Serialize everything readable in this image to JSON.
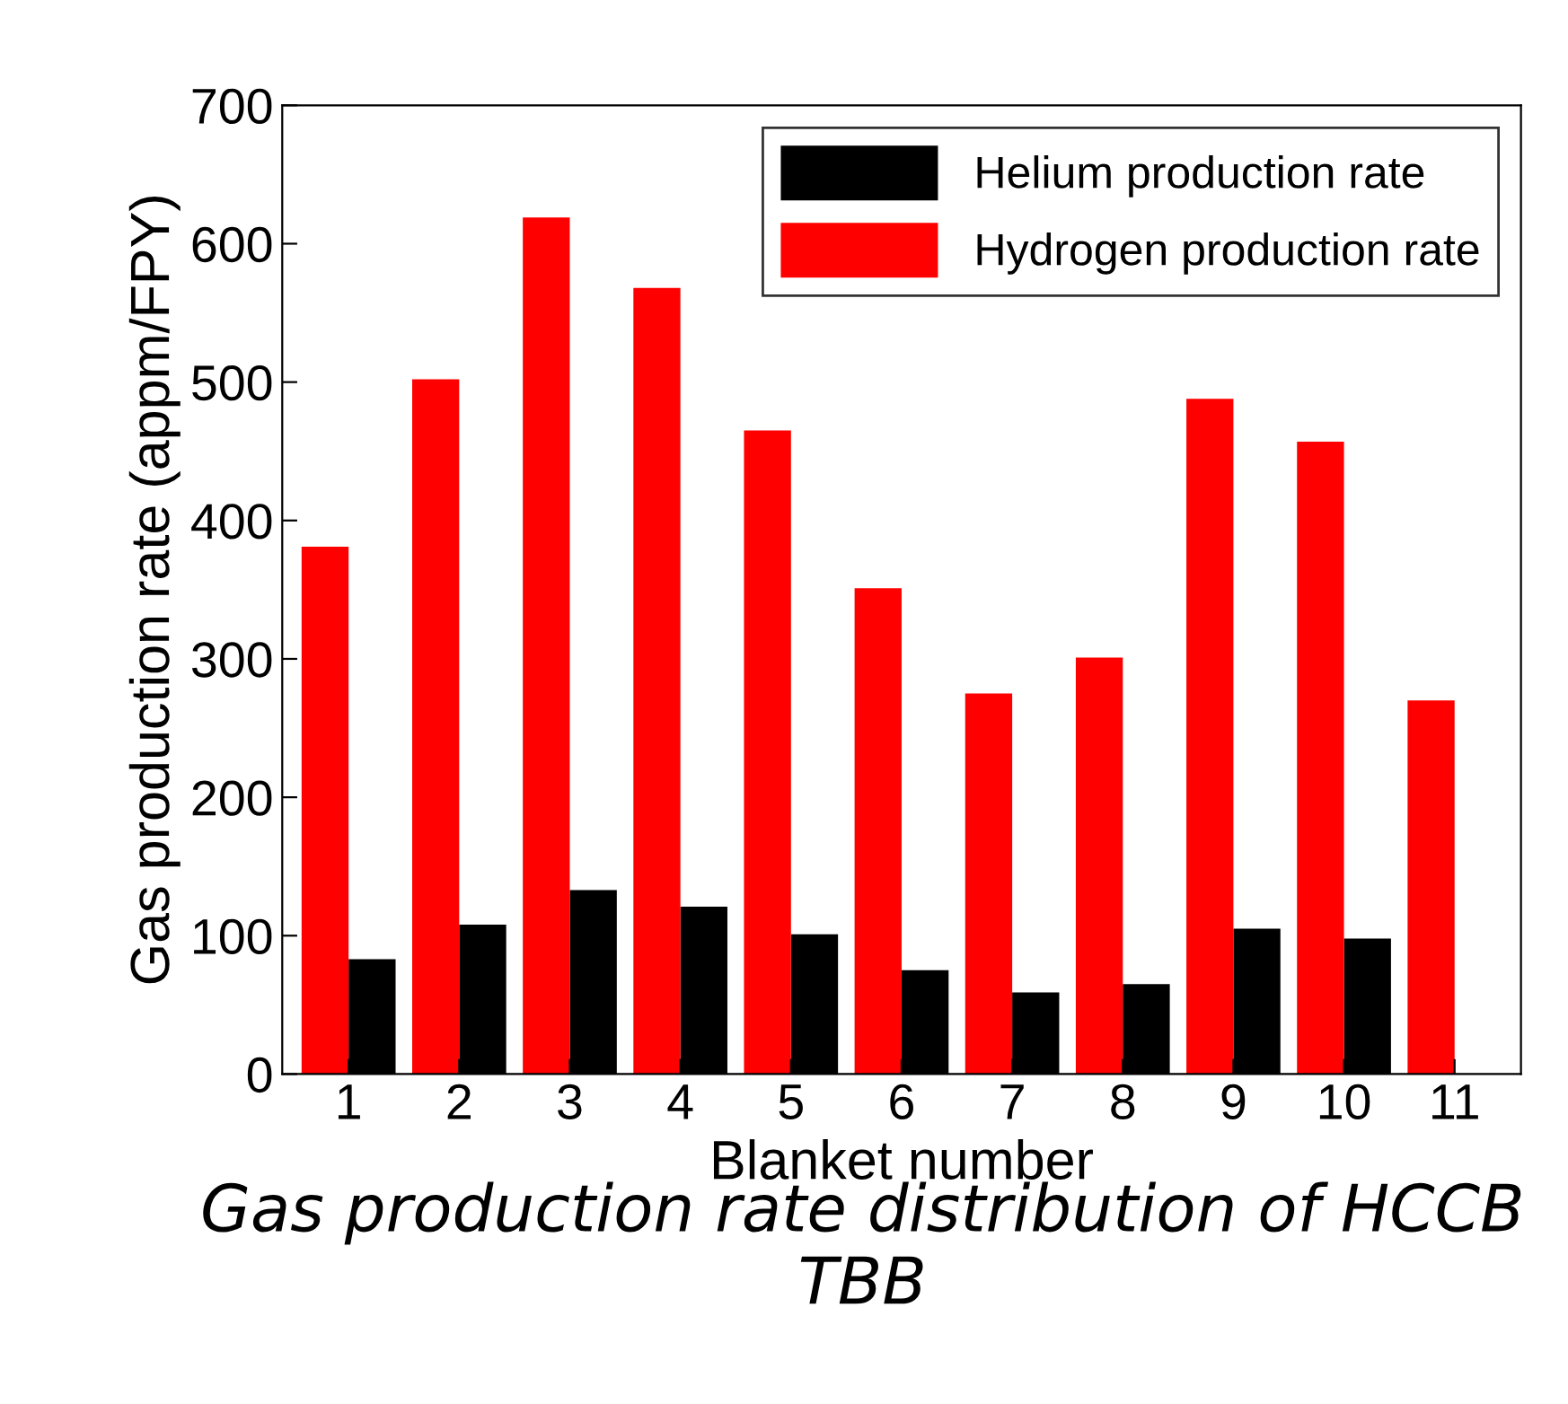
{
  "chart_data": {
    "type": "bar",
    "xlabel": "Blanket number",
    "ylabel": "Gas production rate (appm/FPY)",
    "categories": [
      "1",
      "2",
      "3",
      "4",
      "5",
      "6",
      "7",
      "8",
      "9",
      "10",
      "11"
    ],
    "series": [
      {
        "name": "Helium production rate",
        "color": "#000000",
        "values": [
          83,
          108,
          133,
          121,
          101,
          75,
          59,
          65,
          105,
          98,
          null
        ]
      },
      {
        "name": "Hydrogen production rate",
        "color": "#ff0000",
        "values": [
          381,
          502,
          619,
          568,
          465,
          351,
          275,
          301,
          488,
          457,
          270
        ]
      }
    ],
    "ylim": [
      0,
      700
    ],
    "yticks": [
      0,
      100,
      200,
      300,
      400,
      500,
      600,
      700
    ],
    "grid": false,
    "legend": "top right",
    "annotations": [
      "Gas production rate distribution of HCCB TBB"
    ]
  }
}
